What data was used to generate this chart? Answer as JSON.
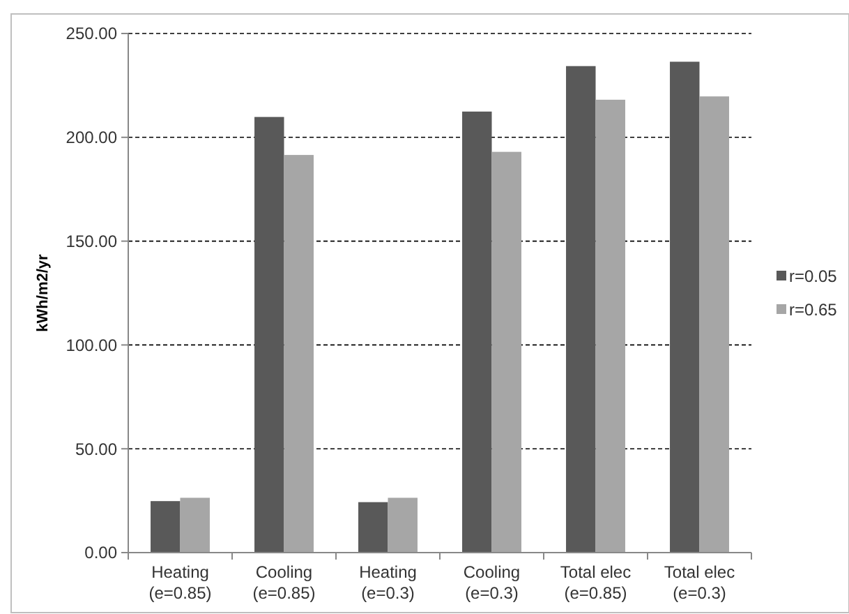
{
  "chart_data": {
    "type": "bar",
    "ylabel": "kWh/m2/yr",
    "categories": [
      "Heating\n(e=0.85)",
      "Cooling\n(e=0.85)",
      "Heating\n(e=0.3)",
      "Cooling\n(e=0.3)",
      "Total elec\n(e=0.85)",
      "Total elec\n(e=0.3)"
    ],
    "series": [
      {
        "name": "r=0.05",
        "color": "#595959",
        "values": [
          24.8,
          209.8,
          24.3,
          212.4,
          234.3,
          236.4
        ]
      },
      {
        "name": "r=0.65",
        "color": "#a6a6a6",
        "values": [
          26.4,
          191.5,
          26.4,
          193.0,
          218.1,
          219.7
        ]
      }
    ],
    "ylim": [
      0,
      250
    ],
    "yticks": [
      {
        "value": 0,
        "label": "0.00"
      },
      {
        "value": 50,
        "label": "50.00"
      },
      {
        "value": 100,
        "label": "100.00"
      },
      {
        "value": 150,
        "label": "150.00"
      },
      {
        "value": 200,
        "label": "200.00"
      },
      {
        "value": 250,
        "label": "250.00"
      }
    ],
    "grid": "y",
    "legend": "right"
  }
}
